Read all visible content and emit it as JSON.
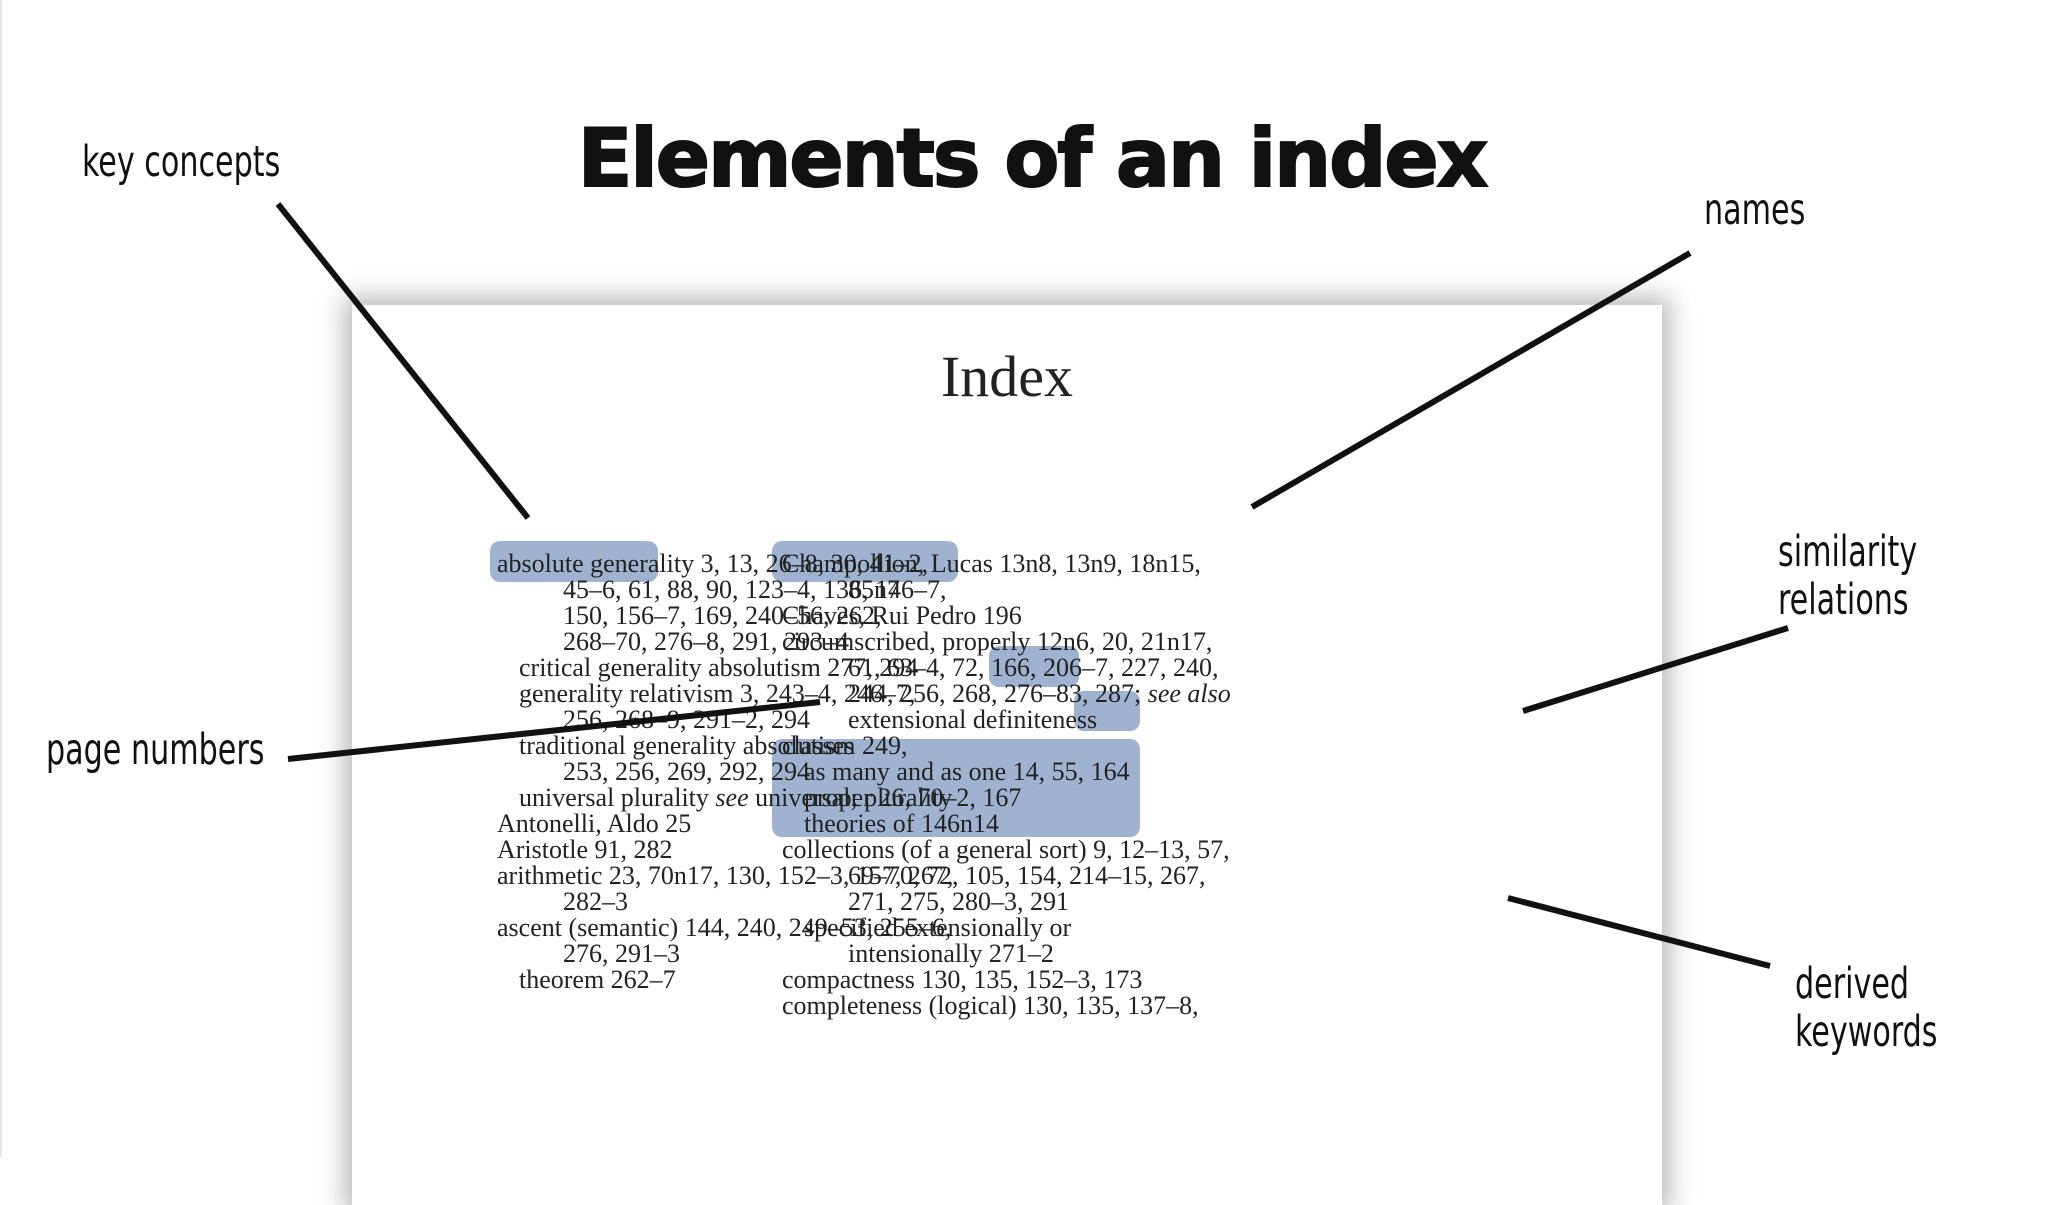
{
  "title": "Elements of an index",
  "callouts": {
    "key_concepts": "key concepts",
    "names": "names",
    "page_numbers": "page numbers",
    "similarity_line1": "similarity",
    "similarity_line2": "relations",
    "derived_line1": "derived",
    "derived_line2": "keywords"
  },
  "page": {
    "heading": "Index",
    "left_column": [
      "absolute generality  3, 13, 26–8, 30, 41–2,",
      "45–6, 61, 88, 90, 123–4, 136, 146–7,",
      "150, 156–7, 169, 240–56, 262,",
      "268–70, 276–8, 291, 293–4",
      "critical generality absolutism  277, 294",
      "generality relativism  3, 243–4, 246–7,",
      "256, 268–9, 291–2, 294",
      "traditional generality absolutism  249,",
      "253, 256, 269, 292, 294",
      "universal plurality see universal; plurality",
      "Antonelli, Aldo  25",
      "Aristotle  91, 282",
      "arithmetic  23, 70n17, 130, 152–3, 157, 267,",
      "282–3",
      "ascent (semantic)  144, 240, 249–53, 255–6,",
      "276, 291–3",
      "theorem  262–7"
    ],
    "right_column": [
      "Champollion, Lucas  13n8, 13n9, 18n15,",
      "85n7",
      "Chaves, Rui Pedro  196",
      "circumscribed, properly  12n6, 20, 21n17,",
      "61, 63–4, 72, 166, 206–7, 227, 240,",
      "244, 256, 268, 276–83, 287; see also",
      "extensional definiteness",
      "classes",
      "as many and as one  14, 55, 164",
      "proper  26, 70–2, 167",
      "theories of  146n14",
      "collections (of a general sort)  9, 12–13, 57,",
      "69–70, 72, 105, 154, 214–15, 267,",
      "271, 275, 280–3, 291",
      "specified extensionally or",
      "intensionally  271–2",
      "compactness  130, 135, 152–3, 173",
      "completeness (logical)  130, 135, 137–8,"
    ]
  },
  "colors": {
    "highlight": "#9fb3d1",
    "leader_line": "#111111"
  }
}
